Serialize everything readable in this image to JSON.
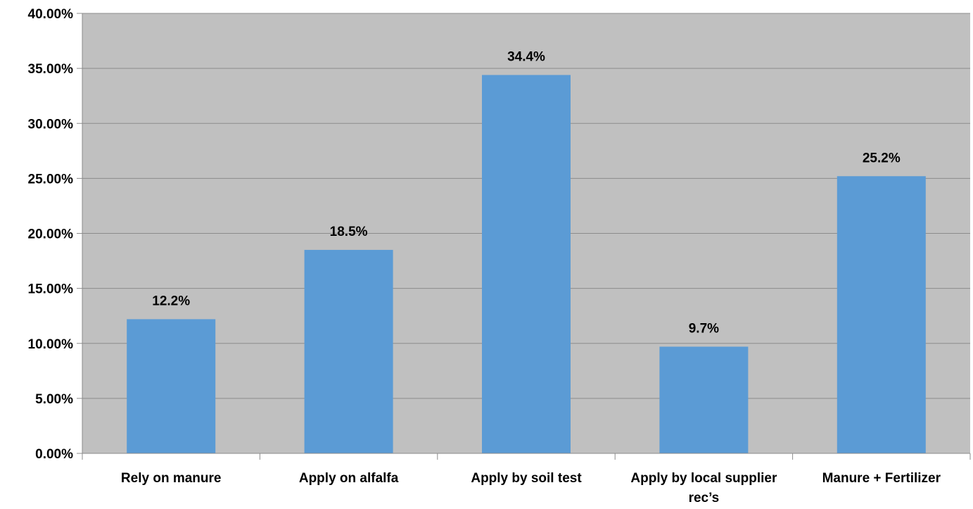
{
  "chart_data": {
    "type": "bar",
    "categories": [
      "Rely on manure",
      "Apply on alfalfa",
      "Apply by soil test",
      "Apply by local supplier rec’s",
      "Manure + Fertilizer"
    ],
    "category_lines": [
      [
        "Rely on manure"
      ],
      [
        "Apply on alfalfa"
      ],
      [
        "Apply by soil test"
      ],
      [
        "Apply by local supplier",
        "rec’s"
      ],
      [
        "Manure + Fertilizer"
      ]
    ],
    "values": [
      12.2,
      18.5,
      34.4,
      9.7,
      25.2
    ],
    "data_labels": [
      "12.2%",
      "18.5%",
      "34.4%",
      "9.7%",
      "25.2%"
    ],
    "y_ticks": [
      "0.00%",
      "5.00%",
      "10.00%",
      "15.00%",
      "20.00%",
      "25.00%",
      "30.00%",
      "35.00%",
      "40.00%"
    ],
    "ylim": [
      0,
      40
    ],
    "grid": true,
    "legend": "none",
    "colors": {
      "bar": "#5b9bd5",
      "plot_background": "#c0c0c0",
      "gridline": "#8c8c8c",
      "axis": "#8c8c8c"
    },
    "title": "",
    "xlabel": "",
    "ylabel": ""
  }
}
